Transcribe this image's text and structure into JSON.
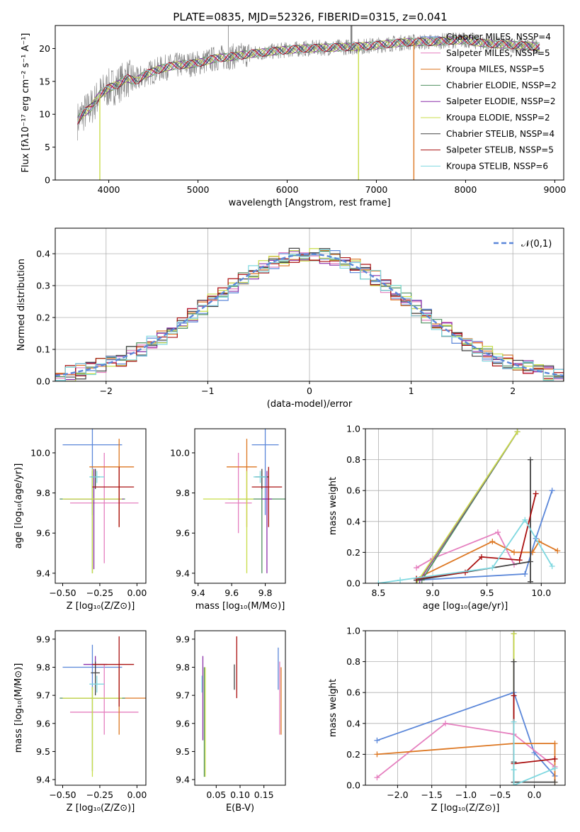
{
  "figure": {
    "title": "PLATE=0835, MJD=52326, FIBERID=0315, z=0.041"
  },
  "models": [
    {
      "name": "Chabrier MILES, N$_{SSP}$=4",
      "color": "#5b87d9"
    },
    {
      "name": "Salpeter MILES, N$_{SSP}$=5",
      "color": "#e57fbf"
    },
    {
      "name": "Kroupa MILES, N$_{SSP}$=5",
      "color": "#dd7722"
    },
    {
      "name": "Chabrier ELODIE, N$_{SSP}$=2",
      "color": "#4f8f5f"
    },
    {
      "name": "Salpeter ELODIE, N$_{SSP}$=2",
      "color": "#8b2fa8"
    },
    {
      "name": "Kroupa ELODIE, N$_{SSP}$=2",
      "color": "#c8dd4a"
    },
    {
      "name": "Chabrier STELIB, N$_{SSP}$=4",
      "color": "#444444"
    },
    {
      "name": "Salpeter STELIB, N$_{SSP}$=5",
      "color": "#aa1111"
    },
    {
      "name": "Kroupa STELIB, N$_{SSP}$=6",
      "color": "#7fd8e0"
    }
  ],
  "chart_data": [
    {
      "id": "spectrum",
      "type": "line",
      "xlabel": "wavelength [Angstrom, rest frame]",
      "ylabel": "Flux [f$_\\lambda$10$^{-17}$ erg cm$^{-2}$ s$^{-1}$ A$^{-1}$]",
      "xlim": [
        3400,
        9100
      ],
      "ylim": [
        0,
        23.5
      ],
      "xticks": [
        4000,
        5000,
        6000,
        7000,
        8000,
        9000
      ],
      "yticks": [
        0,
        5,
        10,
        15,
        20
      ],
      "legend": "top-right",
      "data_continuum": {
        "x": [
          3650,
          3700,
          3800,
          3900,
          4000,
          4100,
          4200,
          4300,
          4400,
          4500,
          4600,
          4700,
          4800,
          4900,
          5000,
          5200,
          5400,
          5600,
          5800,
          6000,
          6200,
          6400,
          6600,
          6800,
          7000,
          7200,
          7400,
          7600,
          7800,
          8000,
          8200,
          8400,
          8600,
          8800
        ],
        "y": [
          9,
          10,
          11,
          13,
          14,
          14.5,
          15.5,
          15,
          16,
          16.5,
          17,
          17.3,
          17.5,
          17.6,
          17.8,
          18.5,
          18.8,
          19.2,
          19.5,
          19.8,
          20,
          20.1,
          20.2,
          20.3,
          20.5,
          20.8,
          21,
          21,
          21.2,
          21.3,
          20.8,
          20.6,
          20.5,
          20.3
        ]
      },
      "dips": [
        {
          "x": 6800,
          "series": "Kroupa ELODIE, N$_{SSP}$=2"
        },
        {
          "x": 7420,
          "series": "Kroupa MILES, N$_{SSP}$=5"
        },
        {
          "x": 3900,
          "series": "Kroupa ELODIE, N$_{SSP}$=2"
        }
      ]
    },
    {
      "id": "residuals",
      "type": "histogram",
      "xlabel": "(data-model)/error",
      "ylabel": "Normed distribution",
      "xlim": [
        -2.5,
        2.5
      ],
      "ylim": [
        0,
        0.48
      ],
      "xticks": [
        -2,
        -1,
        0,
        1,
        2
      ],
      "yticks": [
        0,
        0.1,
        0.2,
        0.3,
        0.4
      ],
      "legend_label": "$\\mathcal{N}(0,1)$",
      "legend_color": "#5b87d9",
      "bin_width": 0.1,
      "grid": true
    },
    {
      "id": "age-z",
      "type": "errorbar",
      "xlabel": "Z [log$_{10}$(Z/Z$_\\odot$)]",
      "ylabel": "age  [log$_{10}$(age/yr)]",
      "xlim": [
        -0.55,
        0.06
      ],
      "ylim": [
        9.35,
        10.12
      ],
      "xticks": [
        -0.5,
        -0.25,
        0.0
      ],
      "yticks": [
        9.4,
        9.6,
        9.8,
        10.0
      ],
      "points": [
        {
          "x": -0.3,
          "y": 10.04,
          "xerr": [
            0.2,
            0.2
          ],
          "yerr": [
            0.35,
            0.08
          ],
          "color": "#5b87d9"
        },
        {
          "x": -0.22,
          "y": 9.75,
          "xerr": [
            0.23,
            0.23
          ],
          "yerr": [
            0.3,
            0.25
          ],
          "color": "#e57fbf"
        },
        {
          "x": -0.12,
          "y": 9.93,
          "xerr": [
            0.2,
            0.1
          ],
          "yerr": [
            0.3,
            0.14
          ],
          "color": "#dd7722"
        },
        {
          "x": -0.3,
          "y": 9.77,
          "xerr": [
            0.22,
            0.22
          ],
          "yerr": [
            0.37,
            0.14
          ],
          "color": "#4f8f5f"
        },
        {
          "x": -0.29,
          "y": 9.77,
          "xerr": [
            0.2,
            0.2
          ],
          "yerr": [
            0.35,
            0.15
          ],
          "color": "#8b2fa8"
        },
        {
          "x": -0.3,
          "y": 9.77,
          "xerr": [
            0.2,
            0.2
          ],
          "yerr": [
            0.37,
            0.15
          ],
          "color": "#c8dd4a"
        },
        {
          "x": -0.28,
          "y": 9.88,
          "xerr": [
            0.03,
            0.03
          ],
          "yerr": [
            0.06,
            0.04
          ],
          "color": "#444444"
        },
        {
          "x": -0.12,
          "y": 9.83,
          "xerr": [
            0.18,
            0.1
          ],
          "yerr": [
            0.2,
            0.1
          ],
          "color": "#aa1111"
        },
        {
          "x": -0.27,
          "y": 9.88,
          "xerr": [
            0.05,
            0.05
          ],
          "yerr": [
            0.03,
            0.03
          ],
          "color": "#7fd8e0"
        }
      ]
    },
    {
      "id": "age-mass",
      "type": "errorbar",
      "xlabel": "mass [log$_{10}$(M/M$_\\odot$)]",
      "ylabel": "",
      "xlim": [
        9.38,
        9.92
      ],
      "ylim": [
        9.35,
        10.12
      ],
      "xticks": [
        9.4,
        9.6,
        9.8
      ],
      "yticks": [
        9.4,
        9.6,
        9.8,
        10.0
      ],
      "points": [
        {
          "x": 9.8,
          "y": 10.04,
          "xerr": [
            0.08,
            0.08
          ],
          "yerr": [
            0.35,
            0.08
          ],
          "color": "#5b87d9"
        },
        {
          "x": 9.64,
          "y": 9.75,
          "xerr": [
            0.08,
            0.08
          ],
          "yerr": [
            0.15,
            0.25
          ],
          "color": "#e57fbf"
        },
        {
          "x": 9.69,
          "y": 9.93,
          "xerr": [
            0.12,
            0.06
          ],
          "yerr": [
            0.3,
            0.14
          ],
          "color": "#dd7722"
        },
        {
          "x": 9.78,
          "y": 9.77,
          "xerr": [
            0.2,
            0.2
          ],
          "yerr": [
            0.37,
            0.14
          ],
          "color": "#4f8f5f"
        },
        {
          "x": 9.81,
          "y": 9.77,
          "xerr": [
            0.03,
            0.03
          ],
          "yerr": [
            0.37,
            0.14
          ],
          "color": "#8b2fa8"
        },
        {
          "x": 9.69,
          "y": 9.77,
          "xerr": [
            0.26,
            0.04
          ],
          "yerr": [
            0.37,
            0.14
          ],
          "color": "#c8dd4a"
        },
        {
          "x": 9.78,
          "y": 9.88,
          "xerr": [
            0.04,
            0.04
          ],
          "yerr": [
            0.06,
            0.04
          ],
          "color": "#444444"
        },
        {
          "x": 9.82,
          "y": 9.83,
          "xerr": [
            0.1,
            0.08
          ],
          "yerr": [
            0.2,
            0.1
          ],
          "color": "#aa1111"
        },
        {
          "x": 9.77,
          "y": 9.88,
          "xerr": [
            0.04,
            0.04
          ],
          "yerr": [
            0.03,
            0.03
          ],
          "color": "#7fd8e0"
        }
      ]
    },
    {
      "id": "weight-age",
      "type": "line",
      "xlabel": "age  [log$_{10}$(age/yr)]",
      "ylabel": "mass weight",
      "xlim": [
        8.38,
        10.22
      ],
      "ylim": [
        0,
        1.0
      ],
      "xticks": [
        8.5,
        9.0,
        9.5,
        10.0
      ],
      "yticks": [
        0.0,
        0.2,
        0.4,
        0.6,
        0.8,
        1.0
      ],
      "grid": true,
      "series": [
        {
          "color": "#5b87d9",
          "x": [
            8.85,
            9.85,
            9.95,
            10.1
          ],
          "y": [
            0.02,
            0.06,
            0.29,
            0.6
          ]
        },
        {
          "color": "#e57fbf",
          "x": [
            8.85,
            9.0,
            9.6,
            9.75
          ],
          "y": [
            0.1,
            0.16,
            0.33,
            0.12
          ]
        },
        {
          "color": "#dd7722",
          "x": [
            8.85,
            9.55,
            9.75,
            9.92,
            9.98,
            10.15
          ],
          "y": [
            0.03,
            0.27,
            0.2,
            0.2,
            0.27,
            0.21
          ]
        },
        {
          "color": "#4f8f5f",
          "x": [
            8.9,
            9.78
          ],
          "y": [
            0.02,
            0.98
          ]
        },
        {
          "color": "#8b2fa8",
          "x": [
            8.88,
            9.78
          ],
          "y": [
            0.02,
            0.98
          ]
        },
        {
          "color": "#c8dd4a",
          "x": [
            8.85,
            9.78
          ],
          "y": [
            0.0,
            0.98
          ]
        },
        {
          "color": "#444444",
          "x": [
            8.85,
            9.9,
            9.9,
            9.9
          ],
          "y": [
            0.02,
            0.14,
            0.8,
            0.01
          ]
        },
        {
          "color": "#aa1111",
          "x": [
            8.85,
            9.3,
            9.45,
            9.8,
            9.95
          ],
          "y": [
            0.03,
            0.07,
            0.17,
            0.15,
            0.58
          ]
        },
        {
          "color": "#7fd8e0",
          "x": [
            8.5,
            8.7,
            9.55,
            9.85,
            10.1
          ],
          "y": [
            0.0,
            0.02,
            0.1,
            0.41,
            0.11
          ]
        }
      ]
    },
    {
      "id": "mass-z",
      "type": "errorbar",
      "xlabel": "Z [log$_{10}$(Z/Z$_\\odot$)]",
      "ylabel": "mass [log$_{10}$(M/M$_\\odot$)]",
      "xlim": [
        -0.55,
        0.06
      ],
      "ylim": [
        9.38,
        9.93
      ],
      "xticks": [
        -0.5,
        -0.25,
        0.0
      ],
      "yticks": [
        9.4,
        9.5,
        9.6,
        9.7,
        9.8,
        9.9
      ],
      "points": [
        {
          "x": -0.3,
          "y": 9.8,
          "xerr": [
            0.2,
            0.2
          ],
          "yerr": [
            0.08,
            0.08
          ],
          "color": "#5b87d9"
        },
        {
          "x": -0.22,
          "y": 9.64,
          "xerr": [
            0.23,
            0.23
          ],
          "yerr": [
            0.08,
            0.17
          ],
          "color": "#e57fbf"
        },
        {
          "x": -0.12,
          "y": 9.69,
          "xerr": [
            0.38,
            0.18
          ],
          "yerr": [
            0.13,
            0.11
          ],
          "color": "#dd7722"
        },
        {
          "x": -0.3,
          "y": 9.69,
          "xerr": [
            0.22,
            0.22
          ],
          "yerr": [
            0.26,
            0.04
          ],
          "color": "#4f8f5f"
        },
        {
          "x": -0.28,
          "y": 9.81,
          "xerr": [
            0.08,
            0.08
          ],
          "yerr": [
            0.03,
            0.03
          ],
          "color": "#8b2fa8"
        },
        {
          "x": -0.3,
          "y": 9.69,
          "xerr": [
            0.2,
            0.2
          ],
          "yerr": [
            0.28,
            0.04
          ],
          "color": "#c8dd4a"
        },
        {
          "x": -0.28,
          "y": 9.78,
          "xerr": [
            0.03,
            0.03
          ],
          "yerr": [
            0.08,
            0.04
          ],
          "color": "#444444"
        },
        {
          "x": -0.12,
          "y": 9.81,
          "xerr": [
            0.18,
            0.1
          ],
          "yerr": [
            0.15,
            0.1
          ],
          "color": "#aa1111"
        },
        {
          "x": -0.27,
          "y": 9.74,
          "xerr": [
            0.05,
            0.05
          ],
          "yerr": [
            0.03,
            0.03
          ],
          "color": "#7fd8e0"
        }
      ]
    },
    {
      "id": "mass-ebv",
      "type": "errorbar",
      "xlabel": "E(B-V)",
      "ylabel": "",
      "xlim": [
        0.005,
        0.195
      ],
      "ylim": [
        9.38,
        9.93
      ],
      "xticks": [
        0.05,
        0.1,
        0.15
      ],
      "yticks": [
        9.4,
        9.5,
        9.6,
        9.7,
        9.8,
        9.9
      ],
      "points": [
        {
          "x": 0.18,
          "y": 9.8,
          "xerr": [
            0,
            0
          ],
          "yerr": [
            0.08,
            0.07
          ],
          "color": "#5b87d9"
        },
        {
          "x": 0.183,
          "y": 9.64,
          "xerr": [
            0,
            0
          ],
          "yerr": [
            0.08,
            0.18
          ],
          "color": "#e57fbf"
        },
        {
          "x": 0.186,
          "y": 9.69,
          "xerr": [
            0,
            0
          ],
          "yerr": [
            0.13,
            0.11
          ],
          "color": "#dd7722"
        },
        {
          "x": 0.025,
          "y": 9.69,
          "xerr": [
            0,
            0
          ],
          "yerr": [
            0.28,
            0.11
          ],
          "color": "#4f8f5f"
        },
        {
          "x": 0.022,
          "y": 9.69,
          "xerr": [
            0,
            0
          ],
          "yerr": [
            0.15,
            0.15
          ],
          "color": "#8b2fa8"
        },
        {
          "x": 0.027,
          "y": 9.69,
          "xerr": [
            0,
            0
          ],
          "yerr": [
            0.28,
            0.11
          ],
          "color": "#c8dd4a"
        },
        {
          "x": 0.088,
          "y": 9.77,
          "xerr": [
            0,
            0
          ],
          "yerr": [
            0.05,
            0.04
          ],
          "color": "#444444"
        },
        {
          "x": 0.093,
          "y": 9.81,
          "xerr": [
            0,
            0
          ],
          "yerr": [
            0.12,
            0.1
          ],
          "color": "#aa1111"
        },
        {
          "x": 0.02,
          "y": 9.74,
          "xerr": [
            0,
            0
          ],
          "yerr": [
            0.03,
            0.03
          ],
          "color": "#7fd8e0"
        }
      ]
    },
    {
      "id": "weight-z",
      "type": "line",
      "xlabel": "Z [log$_{10}$(Z/Z$_\\odot$)]",
      "ylabel": "mass weight",
      "xlim": [
        -2.47,
        0.45
      ],
      "ylim": [
        0,
        1.0
      ],
      "xticks": [
        -2.0,
        -1.5,
        -1.0,
        -0.5,
        0.0
      ],
      "yticks": [
        0.0,
        0.2,
        0.4,
        0.6,
        0.8,
        1.0
      ],
      "grid": true,
      "series": [
        {
          "color": "#5b87d9",
          "x": [
            -2.3,
            -0.3,
            0.0,
            0.3
          ],
          "y": [
            0.29,
            0.6,
            0.21,
            0.06
          ]
        },
        {
          "color": "#e57fbf",
          "x": [
            -2.3,
            -1.3,
            -0.3,
            0.3
          ],
          "y": [
            0.05,
            0.4,
            0.33,
            0.12
          ]
        },
        {
          "color": "#dd7722",
          "x": [
            -2.3,
            -0.3,
            0.3,
            0.3
          ],
          "y": [
            0.2,
            0.27,
            0.27,
            0.02
          ]
        },
        {
          "color": "#4f8f5f",
          "x": [
            -0.3,
            -0.3
          ],
          "y": [
            0.02,
            0.98
          ]
        },
        {
          "color": "#8b2fa8",
          "x": [
            -0.3,
            -0.3
          ],
          "y": [
            0.02,
            0.98
          ]
        },
        {
          "color": "#c8dd4a",
          "x": [
            -0.3,
            -0.3
          ],
          "y": [
            0.0,
            0.98
          ]
        },
        {
          "color": "#444444",
          "x": [
            -0.3,
            -0.3,
            -0.3,
            0.3
          ],
          "y": [
            0.8,
            0.15,
            0.02,
            0.02
          ]
        },
        {
          "color": "#aa1111",
          "x": [
            -0.3,
            -0.3,
            0.3
          ],
          "y": [
            0.58,
            0.14,
            0.17
          ]
        },
        {
          "color": "#7fd8e0",
          "x": [
            -0.3,
            -0.3,
            -0.3,
            0.3
          ],
          "y": [
            0.41,
            0.1,
            0.0,
            0.11
          ]
        }
      ]
    }
  ]
}
